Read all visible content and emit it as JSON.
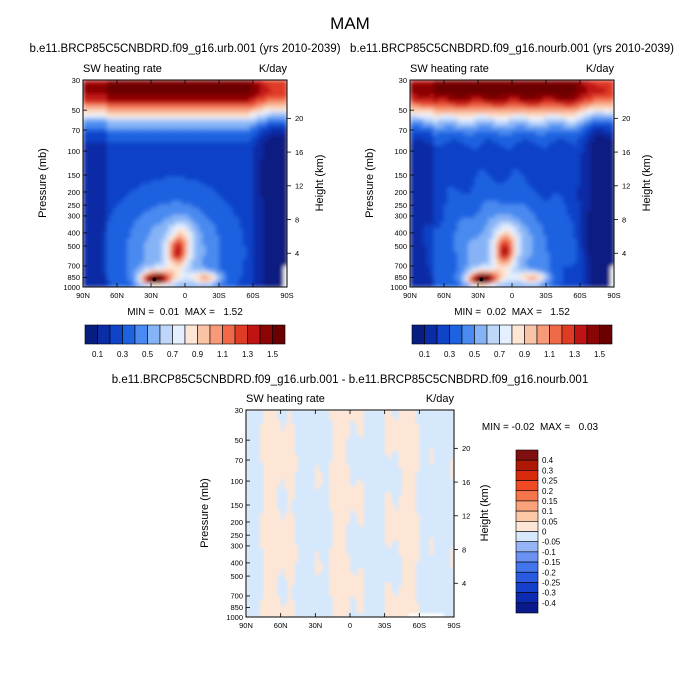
{
  "page_title": "MAM",
  "chart_data": [
    {
      "type": "heatmap",
      "title": "b.e11.BRCP85C5CNBDRD.f09_g16.urb.001 (yrs 2010-2039)",
      "subtitle_left": "SW heating rate",
      "subtitle_right": "K/day",
      "xlabel": "",
      "ylabel": "Pressure (mb)",
      "ylabel_right": "Height (km)",
      "x_tick_labels": [
        "90N",
        "60N",
        "30N",
        "0",
        "30S",
        "60S",
        "90S"
      ],
      "x_range": [
        90,
        -90
      ],
      "y_tick_labels": [
        "30",
        "50",
        "70",
        "100",
        "150",
        "200",
        "250",
        "300",
        "400",
        "500",
        "700",
        "850",
        "1000"
      ],
      "y_range_mb": [
        1000,
        30
      ],
      "right_tick_labels": [
        "20",
        "16",
        "12",
        "8",
        "4"
      ],
      "stats_text": "MIN =  0.01  MAX =   1.52",
      "contour_levels": [
        0.1,
        0.2,
        0.3,
        0.4,
        0.5,
        0.6,
        0.7,
        0.8,
        0.9,
        1.0,
        1.1,
        1.2,
        1.3,
        1.4,
        1.5
      ],
      "colorbar_labels": [
        "0.1",
        "0.3",
        "0.5",
        "0.7",
        "0.9",
        "1.1",
        "1.3",
        "1.5"
      ],
      "colors": [
        "#081d80",
        "#0a2ca6",
        "#0f43c8",
        "#1e62e0",
        "#4a8af0",
        "#86b3f6",
        "#bdd6fa",
        "#e4efff",
        "#fde6d6",
        "#f9c3a6",
        "#f69a77",
        "#f06a4a",
        "#e03b25",
        "#c01414",
        "#8a0606",
        "#6a0000"
      ],
      "max_location": {
        "lat": 27,
        "p": 880
      }
    },
    {
      "type": "heatmap",
      "title": "b.e11.BRCP85C5CNBDRD.f09_g16.nourb.001 (yrs 2010-2039)",
      "subtitle_left": "SW heating rate",
      "subtitle_right": "K/day",
      "xlabel": "",
      "ylabel": "Pressure (mb)",
      "ylabel_right": "Height (km)",
      "x_tick_labels": [
        "90N",
        "60N",
        "30N",
        "0",
        "30S",
        "60S",
        "90S"
      ],
      "x_range": [
        90,
        -90
      ],
      "y_tick_labels": [
        "30",
        "50",
        "70",
        "100",
        "150",
        "200",
        "250",
        "300",
        "400",
        "500",
        "700",
        "850",
        "1000"
      ],
      "y_range_mb": [
        1000,
        30
      ],
      "right_tick_labels": [
        "20",
        "16",
        "12",
        "8",
        "4"
      ],
      "stats_text": "MIN =  0.02  MAX =   1.52",
      "contour_levels": [
        0.1,
        0.2,
        0.3,
        0.4,
        0.5,
        0.6,
        0.7,
        0.8,
        0.9,
        1.0,
        1.1,
        1.2,
        1.3,
        1.4,
        1.5
      ],
      "colorbar_labels": [
        "0.1",
        "0.3",
        "0.5",
        "0.7",
        "0.9",
        "1.1",
        "1.3",
        "1.5"
      ],
      "colors": [
        "#081d80",
        "#0a2ca6",
        "#0f43c8",
        "#1e62e0",
        "#4a8af0",
        "#86b3f6",
        "#bdd6fa",
        "#e4efff",
        "#fde6d6",
        "#f9c3a6",
        "#f69a77",
        "#f06a4a",
        "#e03b25",
        "#c01414",
        "#8a0606",
        "#6a0000"
      ],
      "max_location": {
        "lat": 27,
        "p": 880
      }
    },
    {
      "type": "heatmap",
      "title": "b.e11.BRCP85C5CNBDRD.f09_g16.urb.001 - b.e11.BRCP85C5CNBDRD.f09_g16.nourb.001",
      "subtitle_left": "SW heating rate",
      "subtitle_right": "K/day",
      "xlabel": "",
      "ylabel": "Pressure (mb)",
      "ylabel_right": "Height (km)",
      "x_tick_labels": [
        "90N",
        "60N",
        "30N",
        "0",
        "30S",
        "60S",
        "90S"
      ],
      "x_range": [
        90,
        -90
      ],
      "y_tick_labels": [
        "30",
        "50",
        "70",
        "100",
        "150",
        "200",
        "250",
        "300",
        "400",
        "500",
        "700",
        "850",
        "1000"
      ],
      "y_range_mb": [
        1000,
        30
      ],
      "right_tick_labels": [
        "20",
        "16",
        "12",
        "8",
        "4"
      ],
      "stats_text": "MIN = -0.02  MAX =   0.03",
      "contour_levels": [
        -0.4,
        -0.3,
        -0.25,
        -0.2,
        -0.15,
        -0.1,
        -0.05,
        0,
        0.05,
        0.1,
        0.15,
        0.2,
        0.25,
        0.3,
        0.4
      ],
      "colorbar_labels": [
        "0.4",
        "0.3",
        "0.25",
        "0.2",
        "0.15",
        "0.1",
        "0.05",
        "0",
        "-0.05",
        "-0.1",
        "-0.15",
        "-0.2",
        "-0.25",
        "-0.3",
        "-0.4"
      ],
      "colors": [
        "#0a1a8a",
        "#0c2bb0",
        "#1640cc",
        "#2a5ae0",
        "#4274ec",
        "#6a92f2",
        "#95b4f6",
        "#d6e8fb",
        "#fde6d6",
        "#fbc9a6",
        "#f9a27c",
        "#f6764c",
        "#ef4a24",
        "#d62a0a",
        "#b01806",
        "#801010"
      ]
    }
  ]
}
